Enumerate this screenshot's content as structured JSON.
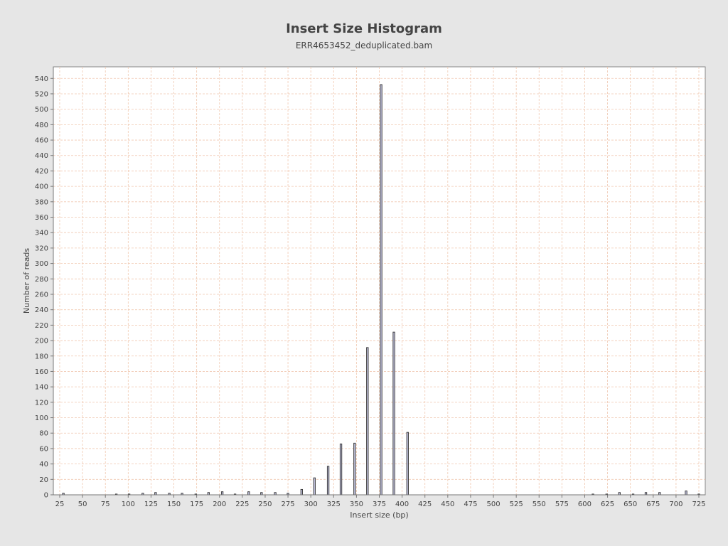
{
  "chart_data": {
    "type": "bar",
    "title": "Insert Size Histogram",
    "subtitle": "ERR4653452_deduplicated.bam",
    "xlabel": "Insert size (bp)",
    "ylabel": "Number of reads",
    "xlim": [
      18,
      732
    ],
    "ylim": [
      0,
      555
    ],
    "x_ticks": [
      25,
      50,
      75,
      100,
      125,
      150,
      175,
      200,
      225,
      250,
      275,
      300,
      325,
      350,
      375,
      400,
      425,
      450,
      475,
      500,
      525,
      550,
      575,
      600,
      625,
      650,
      675,
      700,
      725
    ],
    "y_ticks": [
      0,
      20,
      40,
      60,
      80,
      100,
      120,
      140,
      160,
      180,
      200,
      220,
      240,
      260,
      280,
      300,
      320,
      340,
      360,
      380,
      400,
      420,
      440,
      460,
      480,
      500,
      520,
      540
    ],
    "grid": true,
    "series": [
      {
        "name": "reads",
        "x": [
          29,
          87,
          101,
          116,
          130,
          145,
          159,
          174,
          188,
          203,
          217,
          232,
          246,
          261,
          275,
          290,
          304,
          319,
          333,
          348,
          362,
          377,
          391,
          406,
          609,
          624,
          638,
          653,
          667,
          682,
          711,
          725
        ],
        "values": [
          2,
          1,
          1,
          2,
          3,
          2,
          2,
          1,
          3,
          4,
          1,
          4,
          3,
          3,
          2,
          7,
          22,
          37,
          66,
          67,
          191,
          532,
          211,
          81,
          1,
          1,
          3,
          1,
          3,
          3,
          5,
          1
        ]
      }
    ]
  },
  "colors": {
    "bar_fill": "#c0c0dc",
    "bar_stroke": "#333333",
    "grid": "#f0c8b0",
    "plot_bg": "#ffffff",
    "page_bg": "#e6e6e6"
  }
}
